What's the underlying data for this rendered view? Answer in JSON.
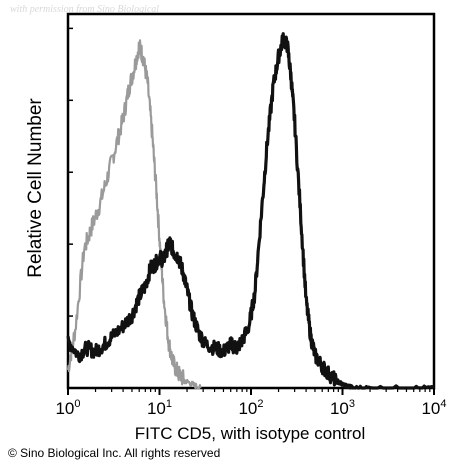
{
  "watermark": "with permission from Sino Biological",
  "copyright": "© Sino Biological Inc. All rights reserved",
  "chart_data": {
    "type": "line",
    "title": "",
    "xlabel": "FITC CD5, with isotype control",
    "ylabel": "Relative Cell Number",
    "x_scale": "log",
    "xlim": [
      1,
      10000
    ],
    "ylim": [
      0,
      100
    ],
    "grid": false,
    "x_ticks": [
      {
        "value": 1,
        "base": "10",
        "exp": "0"
      },
      {
        "value": 10,
        "base": "10",
        "exp": "1"
      },
      {
        "value": 100,
        "base": "10",
        "exp": "2"
      },
      {
        "value": 1000,
        "base": "10",
        "exp": "3"
      },
      {
        "value": 10000,
        "base": "10",
        "exp": "4"
      }
    ],
    "series": [
      {
        "color": "#9a9a9a",
        "x": [
          1.0,
          1.2,
          1.5,
          1.8,
          2.2,
          2.7,
          3.3,
          4.0,
          4.6,
          5.3,
          6.0,
          6.6,
          7.4,
          8.3,
          9.2,
          10.2,
          11.2,
          12.5,
          14.0,
          16.0,
          19.0,
          23.0,
          28.0
        ],
        "y": [
          5,
          16,
          38,
          44,
          50,
          58,
          66,
          74,
          82,
          88,
          94,
          91,
          84,
          70,
          55,
          38,
          24,
          13,
          7,
          4,
          2,
          1,
          0
        ]
      },
      {
        "color": "#111111",
        "x": [
          1.0,
          1.3,
          1.6,
          2.0,
          2.5,
          3.0,
          4.0,
          5.0,
          6.0,
          7.0,
          8.0,
          9.0,
          10.0,
          11.0,
          12.0,
          13.0,
          14.5,
          16.0,
          18.0,
          20.0,
          23.0,
          27.0,
          32.0,
          40.0,
          50.0,
          60.0,
          70.0,
          80.0,
          95.0,
          110.0,
          130.0,
          150.0,
          175.0,
          200.0,
          225.0,
          250.0,
          275.0,
          300.0,
          350.0,
          400.0,
          450.0,
          500.0,
          600.0,
          700.0,
          850.0,
          1000.0,
          1300.0,
          2000.0,
          5000.0,
          10000.0
        ],
        "y": [
          13,
          9,
          11,
          10,
          12,
          14,
          17,
          20,
          25,
          28,
          33,
          34,
          36,
          35,
          38,
          40,
          37,
          36,
          32,
          27,
          20,
          15,
          12,
          11,
          10,
          12,
          11,
          13,
          17,
          26,
          48,
          67,
          83,
          91,
          96,
          94,
          85,
          73,
          47,
          24,
          14,
          9,
          6,
          4,
          2,
          1,
          0,
          0,
          0,
          0
        ]
      }
    ]
  }
}
